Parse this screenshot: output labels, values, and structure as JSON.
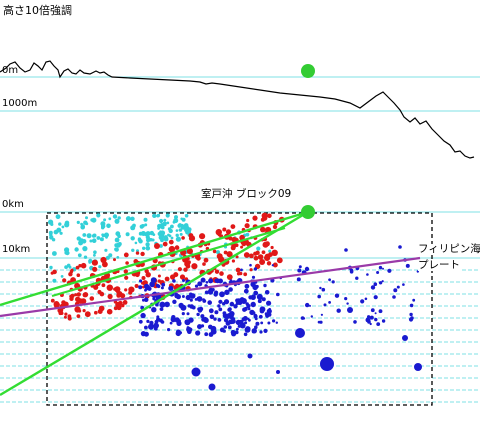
{
  "title": "高さ10倍強調",
  "profile": {
    "label_0m": "0m",
    "label_1000m": "1000m"
  },
  "section": {
    "block_title": "室戸沖 ブロック09",
    "label_0km": "0km",
    "label_10km": "10km",
    "plate_label_line1": "フィリピン海",
    "plate_label_line2": "プレート"
  },
  "colors": {
    "grid_line": "#7fe0e6",
    "upper_cluster": "#33d0d8",
    "middle_cluster": "#e01818",
    "lower_cluster": "#1a1ad0",
    "plate_line": "#9a3aa8",
    "wedge_line": "#33dd33",
    "marker": "#33cc33",
    "box_border": "#000000"
  }
}
